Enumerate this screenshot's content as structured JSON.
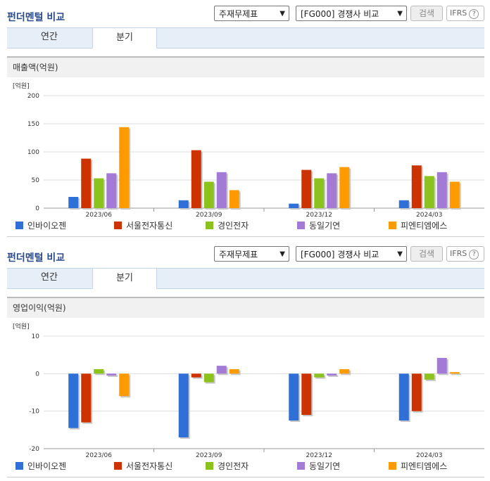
{
  "panels": [
    {
      "title": "펀더멘털 비교",
      "select1": "주재무제표",
      "select2": "[FG000] 경쟁사 비교",
      "search_label": "검색",
      "ifrs_label": "IFRS",
      "ifrs_help": "?",
      "tabs": [
        "연간",
        "분기"
      ],
      "active_tab": 1,
      "section_title": "매출액(억원)"
    },
    {
      "title": "펀더멘털 비교",
      "select1": "주재무제표",
      "select2": "[FG000] 경쟁사 비교",
      "search_label": "검색",
      "ifrs_label": "IFRS",
      "ifrs_help": "?",
      "tabs": [
        "연간",
        "분기"
      ],
      "active_tab": 1,
      "section_title": "영업이익(억원)"
    }
  ],
  "colors": {
    "series": [
      "#2f6fd6",
      "#cc3300",
      "#8bc21d",
      "#a37bd6",
      "#ff9a00"
    ],
    "shadow": "#c8c8c8",
    "grid": "#dddddd"
  },
  "chart_data": [
    {
      "type": "bar",
      "unit_label": "[억원]",
      "categories": [
        "2023/06",
        "2023/09",
        "2023/12",
        "2024/03"
      ],
      "ylim": [
        0,
        200
      ],
      "yticks": [
        0,
        50,
        100,
        150,
        200
      ],
      "grid": true,
      "legend_position": "bottom",
      "series": [
        {
          "name": "인바이오젠",
          "values": [
            20,
            14,
            8,
            14
          ]
        },
        {
          "name": "서울전자통신",
          "values": [
            88,
            103,
            68,
            76
          ]
        },
        {
          "name": "경인전자",
          "values": [
            53,
            47,
            53,
            57
          ]
        },
        {
          "name": "동일기연",
          "values": [
            62,
            64,
            62,
            64
          ]
        },
        {
          "name": "피엔티엠에스",
          "values": [
            144,
            32,
            73,
            47
          ]
        }
      ]
    },
    {
      "type": "bar",
      "unit_label": "[억원]",
      "categories": [
        "2023/06",
        "2023/09",
        "2023/12",
        "2024/03"
      ],
      "ylim": [
        -20,
        10
      ],
      "yticks": [
        -20,
        -10,
        0,
        10
      ],
      "grid": true,
      "legend_position": "bottom",
      "series": [
        {
          "name": "인바이오젠",
          "values": [
            -14.5,
            -17,
            -12.5,
            -12.5
          ]
        },
        {
          "name": "서울전자통신",
          "values": [
            -13,
            -1,
            -11,
            -10
          ]
        },
        {
          "name": "경인전자",
          "values": [
            1.2,
            -2.3,
            -1,
            -1.6
          ]
        },
        {
          "name": "동일기연",
          "values": [
            -0.5,
            2.1,
            -0.5,
            4.2
          ]
        },
        {
          "name": "피엔티엠에스",
          "values": [
            -6,
            1.2,
            1.2,
            0.4
          ]
        }
      ]
    }
  ]
}
